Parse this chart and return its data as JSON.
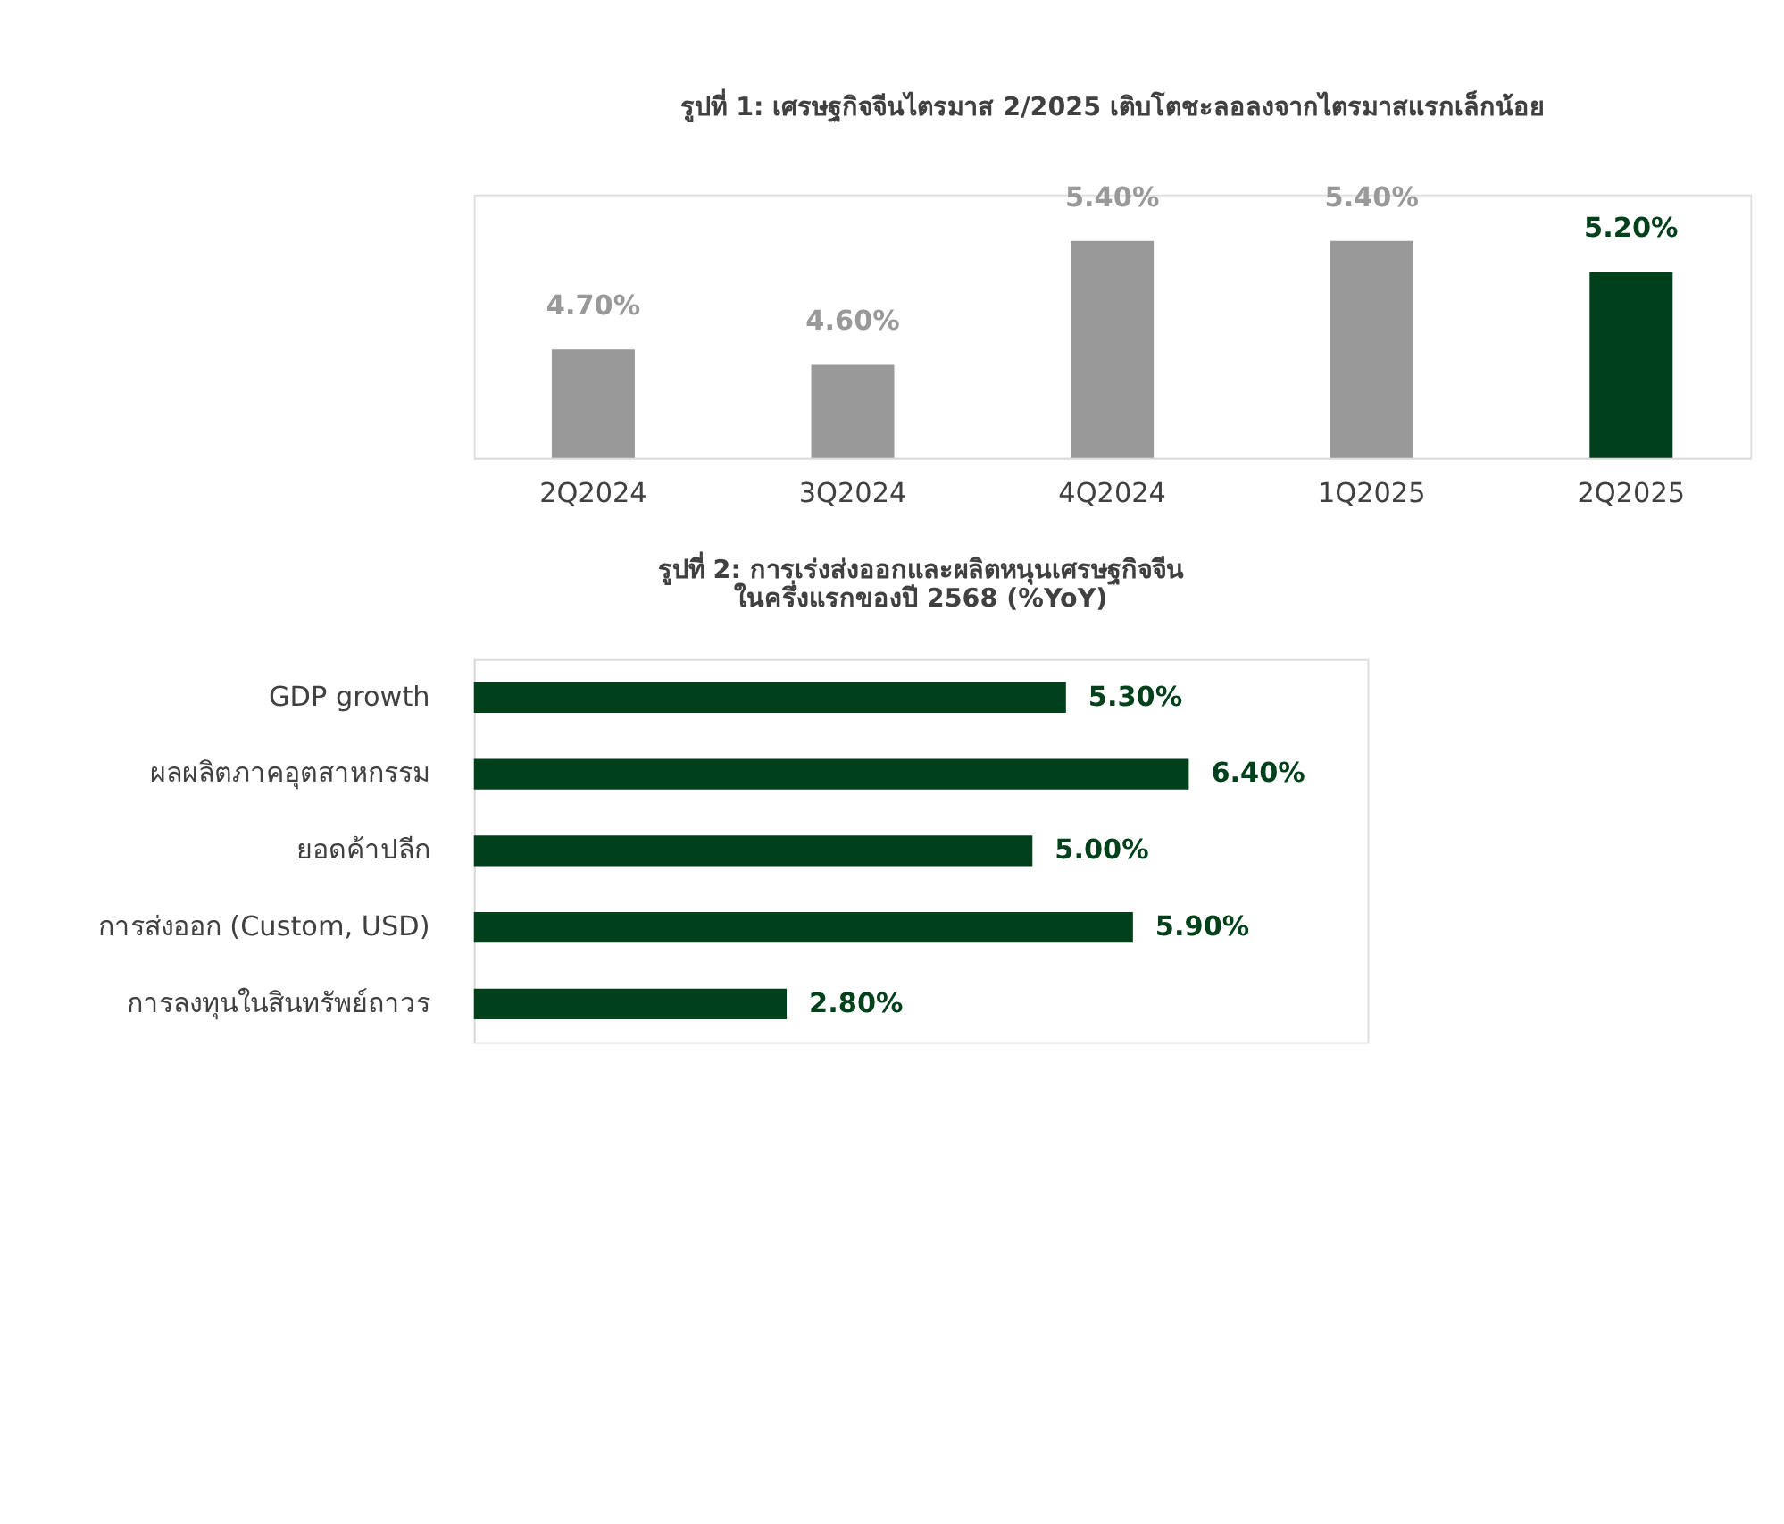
{
  "chart_data": [
    {
      "type": "bar",
      "title": "รูปที่ 1: เศรษฐกิจจีนไตรมาส 2/2025 เติบโตชะลอลงจากไตรมาสแรกเล็กน้อย",
      "categories": [
        "2Q2024",
        "3Q2024",
        "4Q2024",
        "1Q2025",
        "2Q2025"
      ],
      "values": [
        4.7,
        4.6,
        5.4,
        5.4,
        5.2
      ],
      "colors": [
        "#999999",
        "#999999",
        "#999999",
        "#999999",
        "#00401a"
      ],
      "value_labels": [
        "4.70%",
        "4.60%",
        "5.40%",
        "5.40%",
        "5.20%"
      ],
      "ylim": [
        4.0,
        5.7
      ],
      "tick_labels": "x"
    },
    {
      "type": "bar",
      "orientation": "horizontal",
      "title": "รูปที่ 2: การเร่งส่งออกและผลิตหนุนเศรษฐกิจจีน\nในครึ่งแรกของปี 2568 (%YoY)",
      "categories": [
        "GDP growth",
        "ผลผลิตภาคอุตสาหกรรม",
        "ยอดค้าปลีก",
        "การส่งออก (Custom, USD)",
        "การลงทุนในสินทรัพย์ถาวร"
      ],
      "values": [
        5.3,
        6.4,
        5.0,
        5.9,
        2.8
      ],
      "color": "#00401a",
      "value_labels": [
        "5.30%",
        "6.40%",
        "5.00%",
        "5.90%",
        "2.80%"
      ],
      "xlim": [
        0,
        8.0
      ],
      "tick_labels": "y"
    }
  ]
}
